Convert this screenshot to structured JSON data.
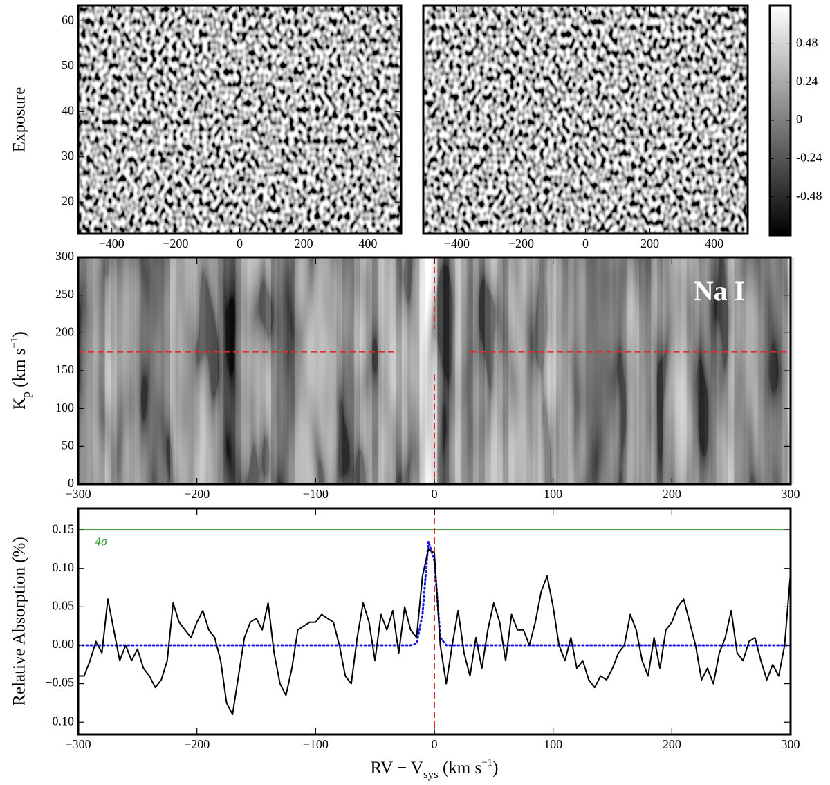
{
  "chart_data": [
    {
      "type": "heatmap",
      "ylabel": "Exposure",
      "xlim": [
        -504,
        504
      ],
      "ylim": [
        13,
        63.4
      ],
      "xticks": [
        {
          "value": -400,
          "label": "−400"
        },
        {
          "value": -200,
          "label": "−200"
        },
        0,
        200,
        400
      ],
      "yticks": [
        20,
        30,
        40,
        50,
        60
      ]
    },
    {
      "type": "heatmap",
      "xlim": [
        -504,
        504
      ],
      "ylim": [
        13,
        63.4
      ],
      "xticks": [
        {
          "value": -400,
          "label": "−400"
        },
        {
          "value": -200,
          "label": "−200"
        },
        0,
        200,
        400
      ]
    },
    {
      "type": "colorbar",
      "clim": [
        -0.72,
        0.72
      ],
      "cticks": [
        0.48,
        0.24,
        0,
        -0.24,
        -0.48
      ]
    },
    {
      "type": "kpmap",
      "ylabel": [
        "K",
        "p",
        " (km s",
        "−1",
        ")"
      ],
      "annotation": "Na I",
      "xlim": [
        -300,
        300
      ],
      "ylim": [
        0,
        300
      ],
      "xticks": [
        {
          "value": -300,
          "label": "−300"
        },
        {
          "value": -200,
          "label": "−200"
        },
        {
          "value": -100,
          "label": "−100"
        },
        0,
        100,
        200,
        300
      ],
      "yticks": [
        0,
        50,
        100,
        150,
        200,
        250,
        300
      ],
      "marker_color": "#e32b2b",
      "kp_line": 175,
      "rv_line": 0,
      "kp_gap": [
        -30,
        30
      ],
      "rv_gap": [
        145,
        205
      ]
    },
    {
      "type": "line",
      "ylabel": "Relative Absorption (%)",
      "xlabel": [
        "RV − V",
        "sys",
        " (km s",
        "−1",
        ")"
      ],
      "xlim": [
        -300,
        300
      ],
      "ylim": [
        -0.116,
        0.178
      ],
      "xticks": [
        {
          "value": -300,
          "label": "−300"
        },
        {
          "value": -200,
          "label": "−200"
        },
        {
          "value": -100,
          "label": "−100"
        },
        0,
        100,
        200,
        300
      ],
      "yticks": [
        {
          "value": 0.15,
          "label": "0.15"
        },
        {
          "value": 0.1,
          "label": "0.10"
        },
        {
          "value": 0.05,
          "label": "0.05"
        },
        {
          "value": 0,
          "label": "0.00"
        },
        {
          "value": -0.05,
          "label": "−0.05"
        },
        {
          "value": -0.1,
          "label": "−0.10"
        }
      ],
      "hline": {
        "value": 0.15,
        "label": "4σ",
        "color": "#2a9a2a"
      },
      "vline": {
        "value": 0,
        "color": "#e32b2b"
      },
      "x": [
        -300,
        -295,
        -290,
        -285,
        -280,
        -275,
        -270,
        -265,
        -260,
        -255,
        -250,
        -245,
        -240,
        -235,
        -230,
        -225,
        -220,
        -215,
        -210,
        -205,
        -200,
        -195,
        -190,
        -185,
        -180,
        -175,
        -170,
        -165,
        -160,
        -155,
        -150,
        -145,
        -140,
        -135,
        -130,
        -125,
        -120,
        -115,
        -110,
        -105,
        -100,
        -95,
        -90,
        -85,
        -80,
        -75,
        -70,
        -65,
        -60,
        -55,
        -50,
        -45,
        -40,
        -35,
        -30,
        -25,
        -20,
        -15,
        -10,
        -5,
        0,
        5,
        10,
        15,
        20,
        25,
        30,
        35,
        40,
        45,
        50,
        55,
        60,
        65,
        70,
        75,
        80,
        85,
        90,
        95,
        100,
        105,
        110,
        115,
        120,
        125,
        130,
        135,
        140,
        145,
        150,
        155,
        160,
        165,
        170,
        175,
        180,
        185,
        190,
        195,
        200,
        205,
        210,
        215,
        220,
        225,
        230,
        235,
        240,
        245,
        250,
        255,
        260,
        265,
        270,
        275,
        280,
        285,
        290,
        295,
        300
      ],
      "series": [
        {
          "color": "#000000",
          "style": "solid",
          "values": [
            -0.04,
            -0.04,
            -0.02,
            0.005,
            -0.01,
            0.06,
            0.02,
            -0.02,
            0.0,
            -0.02,
            -0.005,
            -0.03,
            -0.04,
            -0.055,
            -0.045,
            -0.02,
            0.055,
            0.03,
            0.02,
            0.01,
            0.03,
            0.045,
            0.02,
            0.01,
            -0.02,
            -0.075,
            -0.09,
            -0.04,
            0.01,
            0.03,
            0.035,
            0.02,
            0.055,
            -0.01,
            -0.05,
            -0.065,
            -0.03,
            0.02,
            0.025,
            0.03,
            0.03,
            0.04,
            0.035,
            0.03,
            0.0,
            -0.04,
            -0.05,
            0.01,
            0.055,
            0.03,
            -0.02,
            0.04,
            0.02,
            0.045,
            -0.01,
            0.05,
            0.02,
            0.01,
            0.09,
            0.125,
            0.12,
            0.0,
            -0.05,
            0.0,
            0.045,
            -0.01,
            -0.04,
            0.01,
            -0.03,
            0.02,
            0.055,
            0.03,
            -0.02,
            0.04,
            0.02,
            0.02,
            0.0,
            0.03,
            0.07,
            0.09,
            0.05,
            0.0,
            -0.02,
            0.01,
            -0.03,
            -0.02,
            -0.045,
            -0.055,
            -0.04,
            -0.045,
            -0.03,
            -0.01,
            0.0,
            0.04,
            0.02,
            -0.02,
            -0.04,
            0.01,
            -0.03,
            0.02,
            0.03,
            0.05,
            0.06,
            0.03,
            0.0,
            -0.045,
            -0.03,
            -0.05,
            -0.01,
            0.01,
            0.045,
            -0.01,
            -0.02,
            0.005,
            0.01,
            -0.02,
            -0.045,
            -0.025,
            -0.04,
            0.0,
            0.095
          ]
        },
        {
          "color": "#1a1aee",
          "style": "dotted",
          "values": [
            0,
            0,
            0,
            0,
            0,
            0,
            0,
            0,
            0,
            0,
            0,
            0,
            0,
            0,
            0,
            0,
            0,
            0,
            0,
            0,
            0,
            0,
            0,
            0,
            0,
            0,
            0,
            0,
            0,
            0,
            0,
            0,
            0,
            0,
            0,
            0,
            0,
            0,
            0,
            0,
            0,
            0,
            0,
            0,
            0,
            0,
            0,
            0,
            0,
            0,
            0,
            0,
            0,
            0,
            0,
            0,
            0,
            0.002,
            0.04,
            0.135,
            0.11,
            0.01,
            0,
            0,
            0,
            0,
            0,
            0,
            0,
            0,
            0,
            0,
            0,
            0,
            0,
            0,
            0,
            0,
            0,
            0,
            0,
            0,
            0,
            0,
            0,
            0,
            0,
            0,
            0,
            0,
            0,
            0,
            0,
            0,
            0,
            0,
            0,
            0,
            0,
            0,
            0,
            0,
            0,
            0,
            0,
            0,
            0,
            0,
            0,
            0,
            0,
            0,
            0,
            0,
            0,
            0,
            0,
            0,
            0,
            0,
            0
          ]
        }
      ]
    }
  ]
}
